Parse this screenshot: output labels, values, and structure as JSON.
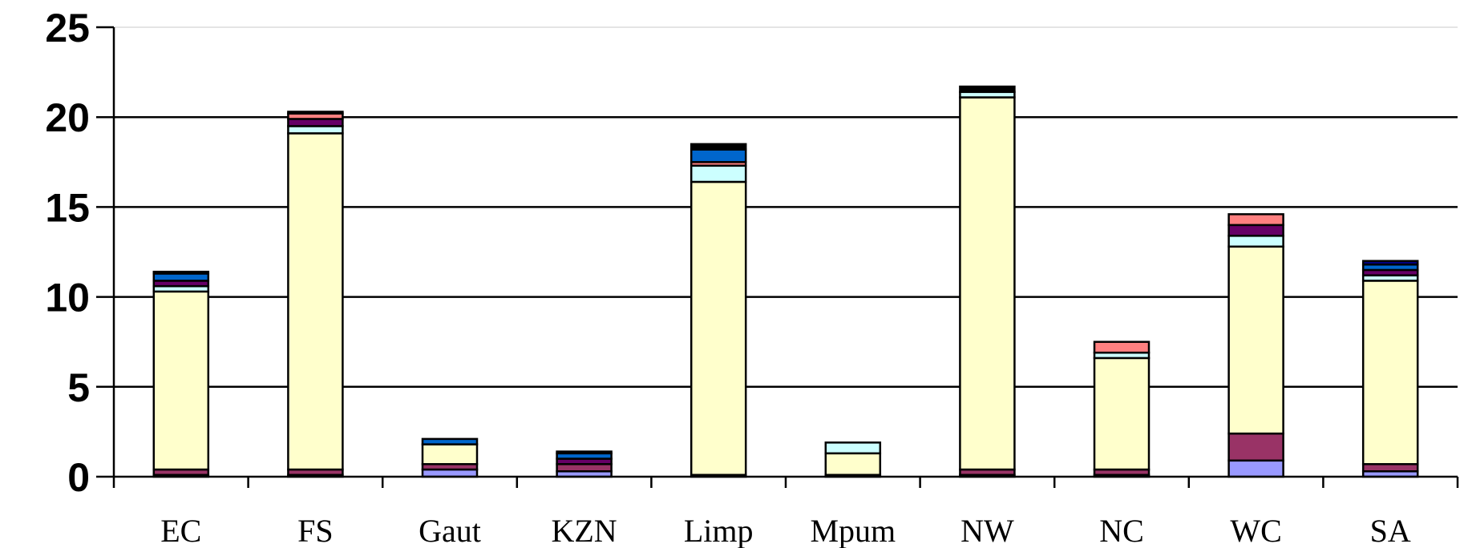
{
  "chart_data": {
    "type": "bar",
    "stacked": true,
    "title": "",
    "xlabel": "",
    "ylabel": "",
    "ylim": [
      0,
      25
    ],
    "yticks": [
      "0",
      "5",
      "10",
      "15",
      "20",
      "25"
    ],
    "grid": true,
    "legend": "none",
    "categories": [
      "EC",
      "FS",
      "Gaut",
      "KZN",
      "Limp",
      "Mpum",
      "NW",
      "NC",
      "WC",
      "SA"
    ],
    "series": [
      {
        "color": "#9999ff",
        "values": [
          0.1,
          0.1,
          0.4,
          0.3,
          0.1,
          0.1,
          0.1,
          0.1,
          0.9,
          0.3
        ]
      },
      {
        "color": "#993366",
        "values": [
          0.3,
          0.3,
          0.3,
          0.4,
          0.0,
          0.0,
          0.3,
          0.3,
          1.5,
          0.4
        ]
      },
      {
        "color": "#ffffcc",
        "values": [
          9.9,
          18.7,
          1.1,
          0.0,
          16.3,
          1.2,
          20.7,
          6.2,
          10.4,
          10.2
        ]
      },
      {
        "color": "#ccffff",
        "values": [
          0.3,
          0.4,
          0.0,
          0.0,
          0.9,
          0.6,
          0.3,
          0.3,
          0.6,
          0.3
        ]
      },
      {
        "color": "#660066",
        "values": [
          0.3,
          0.4,
          0.0,
          0.3,
          0.0,
          0.0,
          0.0,
          0.0,
          0.6,
          0.3
        ]
      },
      {
        "color": "#ff8080",
        "values": [
          0.0,
          0.3,
          0.0,
          0.0,
          0.2,
          0.0,
          0.0,
          0.6,
          0.6,
          0.0
        ]
      },
      {
        "color": "#0066cc",
        "values": [
          0.4,
          0.0,
          0.3,
          0.3,
          0.7,
          0.0,
          0.0,
          0.0,
          0.0,
          0.3
        ]
      },
      {
        "color": "#000080",
        "values": [
          0.1,
          0.0,
          0.0,
          0.1,
          0.0,
          0.0,
          0.0,
          0.0,
          0.0,
          0.2
        ]
      },
      {
        "color": "#000000",
        "values": [
          0.0,
          0.1,
          0.0,
          0.0,
          0.3,
          0.0,
          0.3,
          0.0,
          0.0,
          0.0
        ]
      }
    ]
  }
}
